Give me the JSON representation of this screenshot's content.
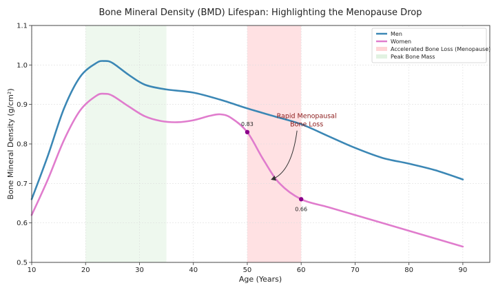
{
  "chart_data": {
    "type": "line",
    "title": "Bone Mineral Density (BMD) Lifespan: Highlighting the Menopause Drop",
    "xlabel": "Age (Years)",
    "ylabel": "Bone Mineral Density (g/cm²)",
    "xlim": [
      10,
      95
    ],
    "ylim": [
      0.5,
      1.1
    ],
    "xticks": [
      10,
      20,
      30,
      40,
      50,
      60,
      70,
      80,
      90
    ],
    "yticks": [
      0.5,
      0.6,
      0.7,
      0.8,
      0.9,
      1.0,
      1.1
    ],
    "xtick_labels": [
      "10",
      "20",
      "30",
      "40",
      "50",
      "60",
      "70",
      "80",
      "90"
    ],
    "ytick_labels": [
      "0.5",
      "0.6",
      "0.7",
      "0.8",
      "0.9",
      "1.0",
      "1.1"
    ],
    "grid": true,
    "legend_position": "top-right",
    "series": [
      {
        "name": "Men",
        "color": "#3b87b5",
        "points": [
          [
            10,
            0.66
          ],
          [
            13,
            0.77
          ],
          [
            16,
            0.89
          ],
          [
            19,
            0.97
          ],
          [
            22,
            1.005
          ],
          [
            23.5,
            1.01
          ],
          [
            25,
            1.005
          ],
          [
            28,
            0.975
          ],
          [
            31,
            0.95
          ],
          [
            35,
            0.938
          ],
          [
            40,
            0.93
          ],
          [
            45,
            0.912
          ],
          [
            50,
            0.89
          ],
          [
            55,
            0.87
          ],
          [
            60,
            0.85
          ],
          [
            65,
            0.82
          ],
          [
            70,
            0.79
          ],
          [
            75,
            0.765
          ],
          [
            80,
            0.75
          ],
          [
            85,
            0.733
          ],
          [
            90,
            0.71
          ]
        ]
      },
      {
        "name": "Women",
        "color": "#e07ccd",
        "points": [
          [
            10,
            0.62
          ],
          [
            13,
            0.71
          ],
          [
            16,
            0.81
          ],
          [
            19,
            0.885
          ],
          [
            22,
            0.922
          ],
          [
            23.5,
            0.927
          ],
          [
            25,
            0.922
          ],
          [
            28,
            0.895
          ],
          [
            31,
            0.87
          ],
          [
            34,
            0.858
          ],
          [
            37,
            0.855
          ],
          [
            40,
            0.86
          ],
          [
            43,
            0.871
          ],
          [
            45,
            0.875
          ],
          [
            47,
            0.866
          ],
          [
            50,
            0.83
          ],
          [
            53,
            0.76
          ],
          [
            56,
            0.7
          ],
          [
            60,
            0.66
          ],
          [
            65,
            0.64
          ],
          [
            70,
            0.62
          ],
          [
            75,
            0.6
          ],
          [
            80,
            0.58
          ],
          [
            85,
            0.56
          ],
          [
            90,
            0.54
          ]
        ]
      }
    ],
    "shaded_regions": [
      {
        "name": "Accelerated Bone Loss (Menopause)",
        "x_start": 50,
        "x_end": 60,
        "color": "#ffc9cc"
      },
      {
        "name": "Peak Bone Mass",
        "x_start": 20,
        "x_end": 35,
        "color": "#d9efda"
      }
    ],
    "point_labels": [
      {
        "x": 50,
        "y": 0.83,
        "text": "0.83",
        "color": "#8b008b"
      },
      {
        "x": 60,
        "y": 0.66,
        "text": "0.66",
        "color": "#8b008b"
      }
    ],
    "annotation": {
      "lines": [
        "Rapid Menopausal",
        "Bone Loss"
      ],
      "text_x": 60,
      "text_y": 0.865,
      "arrow_to_x": 54.5,
      "arrow_to_y": 0.71
    },
    "legend": [
      "Men",
      "Women",
      "Accelerated Bone Loss (Menopause)",
      "Peak Bone Mass"
    ]
  }
}
